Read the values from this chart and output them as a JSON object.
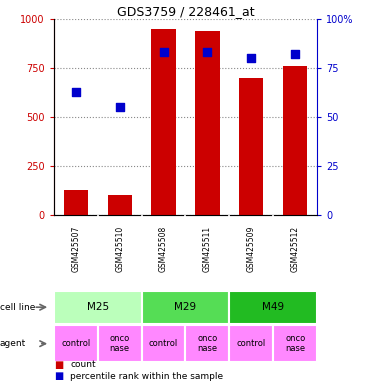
{
  "title": "GDS3759 / 228461_at",
  "samples": [
    "GSM425507",
    "GSM425510",
    "GSM425508",
    "GSM425511",
    "GSM425509",
    "GSM425512"
  ],
  "counts": [
    130,
    100,
    950,
    940,
    700,
    760
  ],
  "percentiles": [
    63,
    55,
    83,
    83,
    80,
    82
  ],
  "bar_color": "#CC0000",
  "dot_color": "#0000CC",
  "left_axis_color": "#CC0000",
  "right_axis_color": "#0000CC",
  "left_yticks": [
    0,
    250,
    500,
    750,
    1000
  ],
  "right_yticks": [
    0,
    25,
    50,
    75,
    100
  ],
  "ylim_left": [
    0,
    1000
  ],
  "ylim_right": [
    0,
    100
  ],
  "m25_color": "#BBFFBB",
  "m29_color": "#55DD55",
  "m49_color": "#22BB22",
  "agent_color": "#FF88FF",
  "sample_area_color": "#CCCCCC",
  "grid_color": "#888888",
  "cell_lines": [
    {
      "label": "M25",
      "start": 0,
      "end": 2,
      "color": "#BBFFBB"
    },
    {
      "label": "M29",
      "start": 2,
      "end": 4,
      "color": "#55DD55"
    },
    {
      "label": "M49",
      "start": 4,
      "end": 6,
      "color": "#22BB22"
    }
  ],
  "agent_labels": [
    "control",
    "onconase",
    "control",
    "onconase",
    "control",
    "onconase"
  ],
  "agent_display": [
    "control",
    "onco\nnase",
    "control",
    "onco\nnase",
    "control",
    "onco\nnase"
  ]
}
